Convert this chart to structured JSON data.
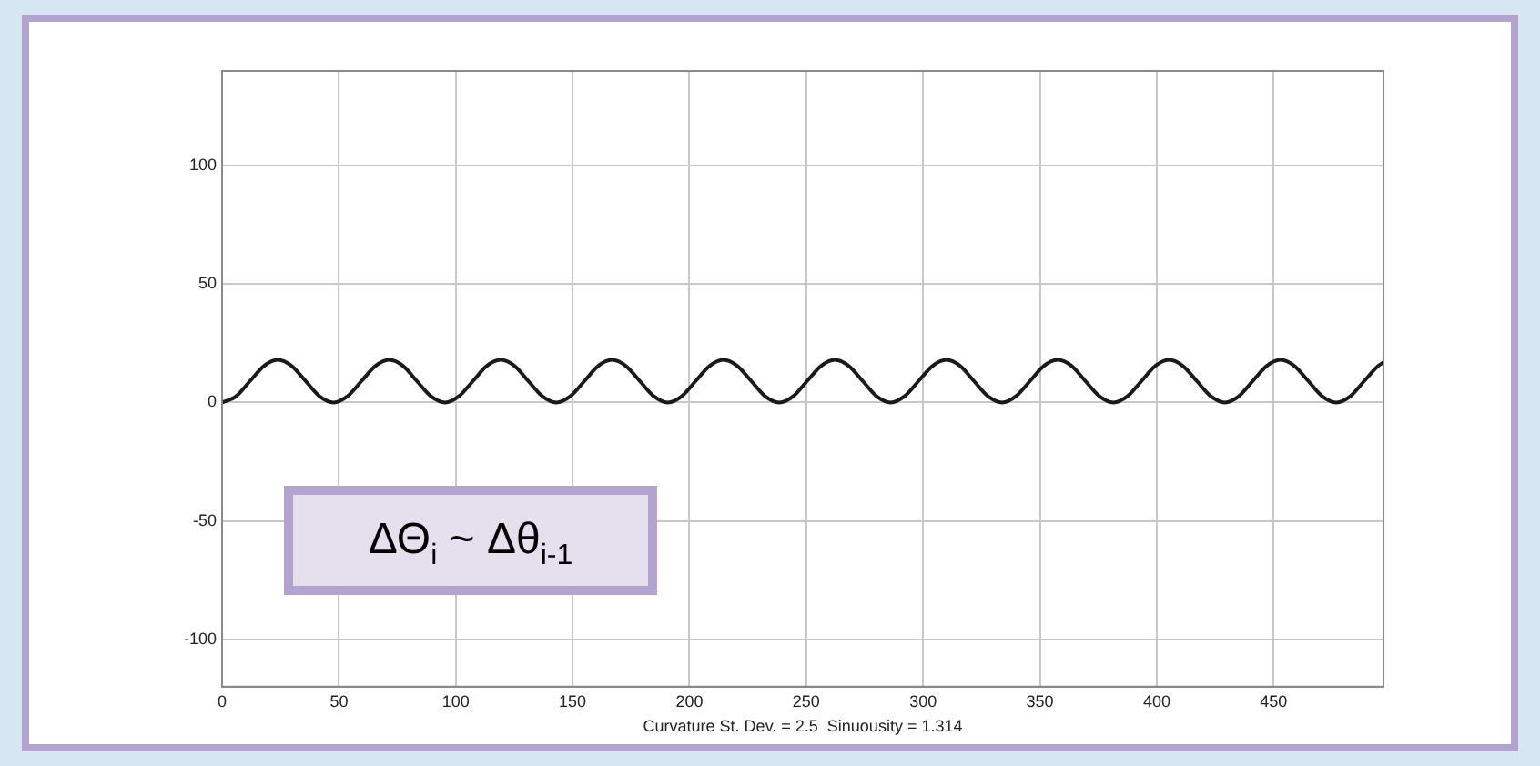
{
  "chart_data": {
    "type": "line",
    "xlabel": "Curvature St. Dev. = 2.5  Sinuousity = 1.314",
    "annotations": [
      "ΔΘ$_{i}$ ~ Δθ$_{i-1}$"
    ],
    "xlim": [
      0,
      497
    ],
    "xticks": [
      0,
      50,
      100,
      150,
      200,
      250,
      300,
      350,
      400,
      450
    ],
    "ylim": [
      -120,
      140
    ],
    "yticks": [
      -100,
      -50,
      0,
      50,
      100
    ],
    "grid": true,
    "legend": false,
    "marker": "none",
    "line_style": "solid",
    "series": [
      {
        "color": "#1a1a1a",
        "x": [
          0,
          6,
          11.9,
          17.9,
          23.8,
          29.8,
          35.8,
          41.7,
          47.7,
          53.6,
          59.6,
          65.6,
          71.5,
          77.5,
          83.4,
          89.4,
          95.4,
          101.3,
          107.3,
          113.2,
          119.2,
          125.2,
          131.1,
          137.1,
          143,
          149,
          155,
          160.9,
          166.9,
          172.8,
          178.8,
          184.8,
          190.7,
          196.7,
          202.6,
          208.6,
          214.6,
          220.5,
          226.5,
          232.4,
          238.4,
          244.4,
          250.3,
          256.3,
          262.2,
          268.2,
          274.2,
          280.1,
          286.1,
          292,
          298,
          304,
          309.9,
          315.9,
          321.8,
          327.8,
          333.8,
          339.7,
          345.7,
          351.6,
          357.6,
          363.6,
          369.5,
          375.5,
          381.4,
          387.4,
          393.4,
          399.3,
          405.3,
          411.2,
          417.2,
          423.2,
          429.1,
          435.1,
          441,
          447,
          453,
          458.9,
          464.9,
          470.8,
          476.8,
          482.8,
          488.7,
          494.7,
          497
        ],
        "values": [
          0,
          2.6,
          9,
          15.4,
          18,
          15.4,
          9,
          2.6,
          0,
          2.6,
          9,
          15.4,
          18,
          15.4,
          9,
          2.6,
          0,
          2.6,
          9,
          15.4,
          18,
          15.4,
          9,
          2.6,
          0,
          2.6,
          9,
          15.4,
          18,
          15.4,
          9,
          2.6,
          0,
          2.6,
          9,
          15.4,
          18,
          15.4,
          9,
          2.6,
          0,
          2.6,
          9,
          15.4,
          18,
          15.4,
          9,
          2.6,
          0,
          2.6,
          9,
          15.4,
          18,
          15.4,
          9,
          2.6,
          0,
          2.6,
          9,
          15.4,
          18,
          15.4,
          9,
          2.6,
          0,
          2.6,
          9,
          15.4,
          18,
          15.4,
          9,
          2.6,
          0,
          2.6,
          9,
          15.4,
          18,
          15.4,
          9,
          2.6,
          0,
          2.6,
          9,
          15.4,
          16.9
        ]
      }
    ]
  }
}
